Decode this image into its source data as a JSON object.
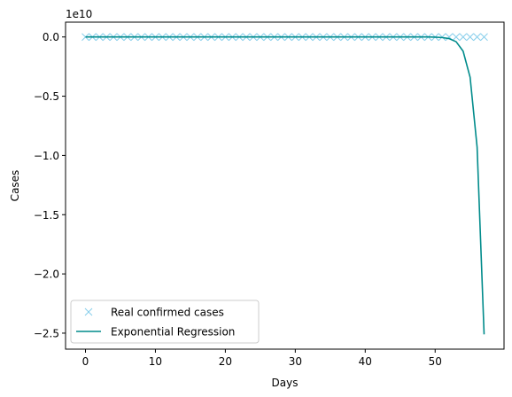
{
  "chart_data": {
    "type": "line",
    "title": "",
    "xlabel": "Days",
    "ylabel": "Cases",
    "offset_text": "1e10",
    "xlim": [
      -2.85,
      59.85
    ],
    "ylim": [
      -26.35,
      1.25
    ],
    "x_ticks": [
      0,
      10,
      20,
      30,
      40,
      50
    ],
    "x_tick_labels": [
      "0",
      "10",
      "20",
      "30",
      "40",
      "50"
    ],
    "y_ticks": [
      0,
      -5,
      -10,
      -15,
      -20,
      -25
    ],
    "y_tick_labels": [
      "0.0",
      "−0.5",
      "−1.0",
      "−1.5",
      "−2.0",
      "−2.5"
    ],
    "grid": false,
    "legend_position": "lower-left",
    "series": [
      {
        "name": "Real confirmed cases",
        "style": "markers",
        "marker": "x",
        "color": "#87ceeb",
        "x": [
          0,
          1,
          2,
          3,
          4,
          5,
          6,
          7,
          8,
          9,
          10,
          11,
          12,
          13,
          14,
          15,
          16,
          17,
          18,
          19,
          20,
          21,
          22,
          23,
          24,
          25,
          26,
          27,
          28,
          29,
          30,
          31,
          32,
          33,
          34,
          35,
          36,
          37,
          38,
          39,
          40,
          41,
          42,
          43,
          44,
          45,
          46,
          47,
          48,
          49,
          50,
          51,
          52,
          53,
          54,
          55,
          56,
          57
        ],
        "y": [
          0,
          0,
          0,
          0,
          0,
          0,
          0,
          0,
          0,
          0,
          0,
          0,
          0,
          0,
          0,
          0,
          0,
          0,
          0,
          0,
          0,
          0,
          0,
          0,
          0,
          0,
          0,
          0,
          0,
          0,
          0,
          0,
          0,
          0,
          0,
          0,
          0,
          0,
          0,
          0,
          0,
          0,
          0,
          0,
          0,
          0,
          0,
          0,
          0,
          0,
          0,
          0,
          0,
          0,
          0,
          0,
          0,
          0
        ]
      },
      {
        "name": "Exponential Regression",
        "style": "line",
        "color": "#008b8b",
        "x": [
          0,
          1,
          2,
          3,
          4,
          5,
          6,
          7,
          8,
          9,
          10,
          11,
          12,
          13,
          14,
          15,
          16,
          17,
          18,
          19,
          20,
          21,
          22,
          23,
          24,
          25,
          26,
          27,
          28,
          29,
          30,
          31,
          32,
          33,
          34,
          35,
          36,
          37,
          38,
          39,
          40,
          41,
          42,
          43,
          44,
          45,
          46,
          47,
          48,
          49,
          50,
          51,
          52,
          53,
          54,
          55,
          56,
          57
        ],
        "y": [
          0,
          0,
          0,
          0,
          0,
          0,
          0,
          0,
          0,
          0,
          0,
          0,
          0,
          0,
          0,
          0,
          0,
          0,
          0,
          0,
          0,
          0,
          0,
          0,
          0,
          0,
          0,
          0,
          0,
          0,
          0,
          0,
          0,
          0,
          0,
          0,
          0,
          0,
          0,
          0,
          0,
          0,
          0,
          0,
          0,
          0,
          0,
          0,
          0,
          0,
          -0.02,
          -0.05,
          -0.14,
          -0.4,
          -1.2,
          -3.4,
          -9.3,
          -25.1
        ]
      }
    ]
  }
}
